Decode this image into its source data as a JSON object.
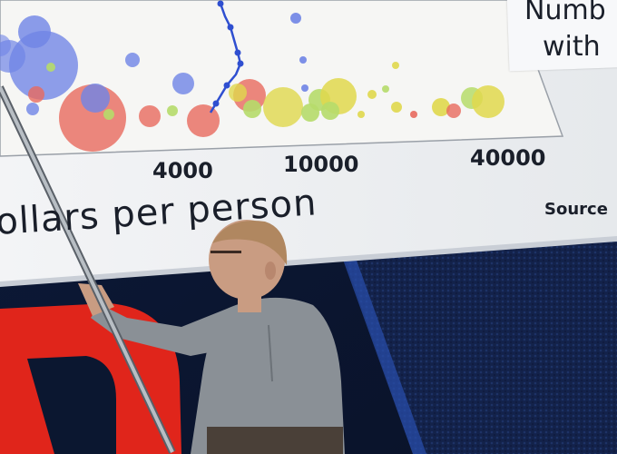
{
  "slide": {
    "x_ticks": [
      "4000",
      "10000",
      "40000"
    ],
    "axis_label": "ollars per person",
    "source_label": "Source",
    "legend_lines": [
      "Numb",
      "with"
    ]
  },
  "colors": {
    "stage_background": "#0b1730",
    "screen": "#eef0f2",
    "bubble_blue": "#6f84e6",
    "bubble_red": "#e86a5e",
    "bubble_yellow": "#e0d84c",
    "bubble_green": "#b6dc6a",
    "trail_line": "#2f4fd0",
    "logo_red": "#e0251b",
    "shirt": "#8a9096",
    "pointer": "#b8bec4"
  }
}
